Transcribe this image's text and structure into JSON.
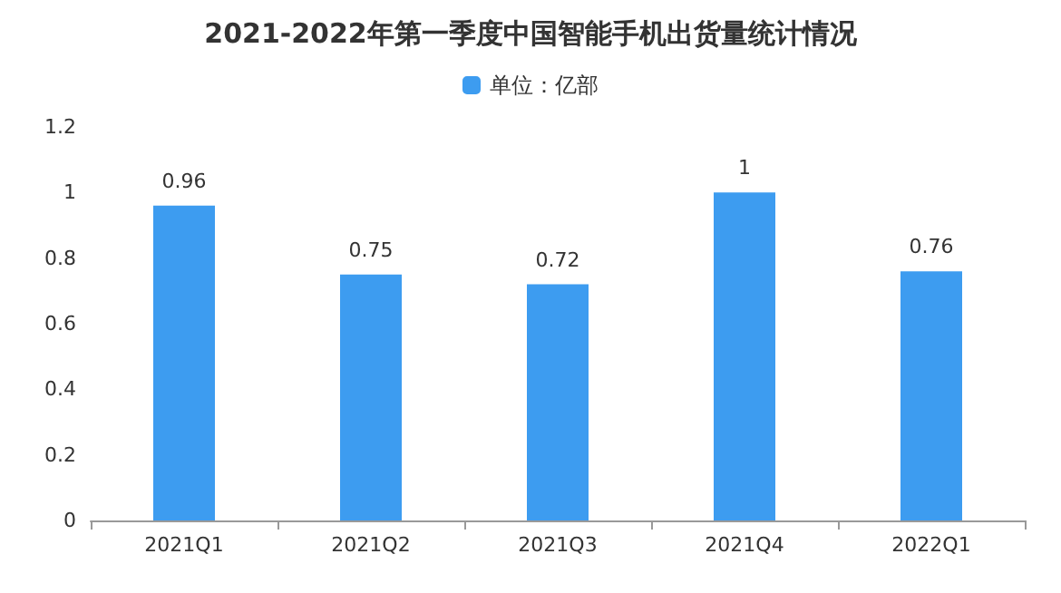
{
  "chart_data": {
    "type": "bar",
    "title": "2021-2022年第一季度中国智能手机出货量统计情况",
    "categories": [
      "2021Q1",
      "2021Q2",
      "2021Q3",
      "2021Q4",
      "2022Q1"
    ],
    "series": [
      {
        "name": "单位：亿部",
        "color": "#3d9cf0",
        "values": [
          0.96,
          0.75,
          0.72,
          1,
          0.76
        ]
      }
    ],
    "ylim": [
      0,
      1.2
    ],
    "yticks": [
      0,
      0.2,
      0.4,
      0.6,
      0.8,
      1,
      1.2
    ],
    "grid": false,
    "legend": "top",
    "data_labels": true
  }
}
